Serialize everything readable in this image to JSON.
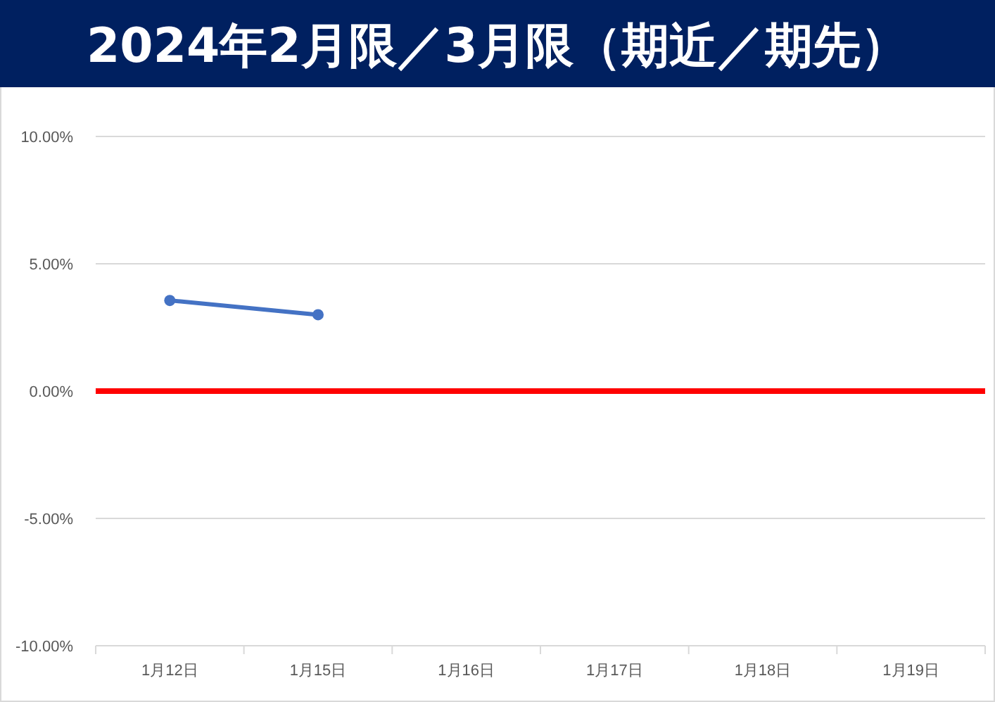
{
  "chart_data": {
    "type": "line",
    "title": "2024年2月限／3月限（期近／期先）",
    "categories": [
      "1月12日",
      "1月15日",
      "1月16日",
      "1月17日",
      "1月18日",
      "1月19日"
    ],
    "series": [
      {
        "color": "#4472c4",
        "values": [
          3.56,
          3.0,
          null,
          null,
          null,
          null
        ]
      }
    ],
    "ylim": [
      -10,
      10
    ],
    "yticks": [
      {
        "value": -10,
        "label": "-10.00%"
      },
      {
        "value": -5,
        "label": "-5.00%"
      },
      {
        "value": 0,
        "label": "0.00%"
      },
      {
        "value": 5,
        "label": "5.00%"
      },
      {
        "value": 10,
        "label": "10.00%"
      }
    ],
    "ref_lines": [
      {
        "axis": "y",
        "value": 0,
        "color": "#ff0000"
      }
    ],
    "grid": "y",
    "marker": "circle",
    "line_style": "solid"
  }
}
